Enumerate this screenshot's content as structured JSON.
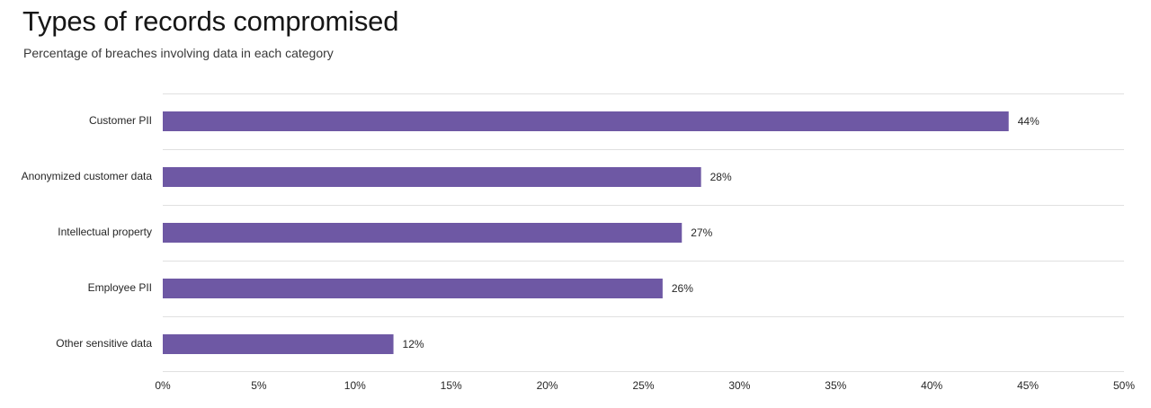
{
  "chart_data": {
    "type": "bar",
    "orientation": "horizontal",
    "title": "Types of records compromised",
    "subtitle": "Percentage of breaches involving data in each category",
    "categories": [
      "Customer PII",
      "Anonymized customer data",
      "Intellectual property",
      "Employee PII",
      "Other sensitive data"
    ],
    "values": [
      44,
      28,
      27,
      26,
      12
    ],
    "value_labels": [
      "44%",
      "28%",
      "27%",
      "26%",
      "12%"
    ],
    "xlim": [
      0,
      50
    ],
    "xticks": [
      0,
      5,
      10,
      15,
      20,
      25,
      30,
      35,
      40,
      45,
      50
    ],
    "xtick_labels": [
      "0%",
      "5%",
      "10%",
      "15%",
      "20%",
      "25%",
      "30%",
      "35%",
      "40%",
      "45%",
      "50%"
    ],
    "xlabel": "",
    "ylabel": "",
    "grid": true,
    "legend": "none",
    "bar_color": "#6e58a4",
    "grid_color": "#e0e0e0"
  }
}
